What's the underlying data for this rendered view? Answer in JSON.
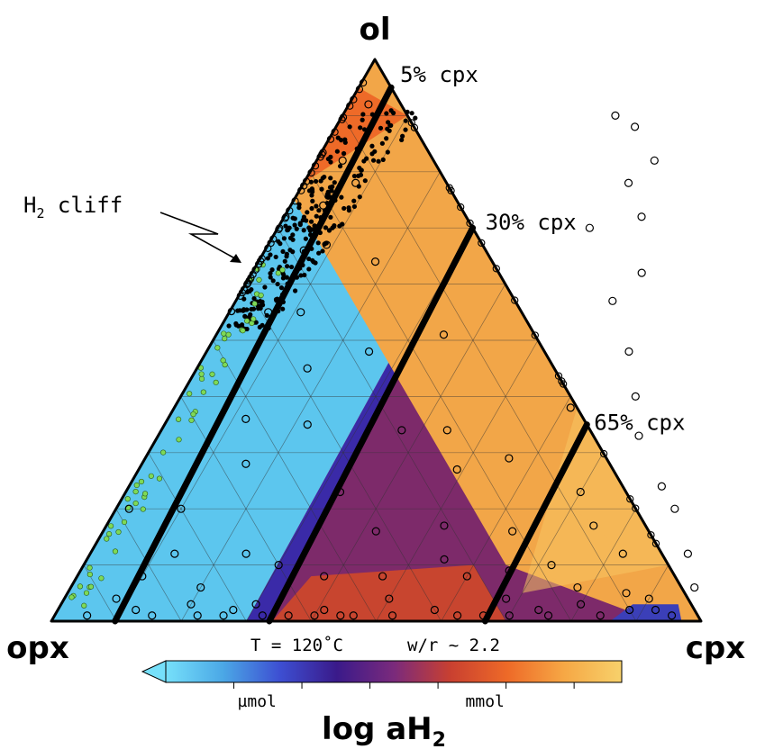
{
  "chart_data": {
    "type": "ternary",
    "vertices": {
      "top": "ol",
      "left": "opx",
      "right": "cpx"
    },
    "grid_step": 0.1,
    "conditions": {
      "temperature": "T = 120˚C",
      "water_rock": "w/r ~ 2.2"
    },
    "annotation": {
      "text_main": "H",
      "text_sub": "2",
      "text_tail": " cliff"
    },
    "regions": [
      {
        "name": "umol",
        "color": "#5cc6ee",
        "polygon": [
          [
            0,
            0.75,
            0.25
          ],
          [
            0.29,
            0.46,
            0.25
          ],
          [
            0.3,
            0,
            0.7
          ],
          [
            0,
            0,
            1.0
          ]
        ]
      },
      {
        "name": "transition",
        "color": "#3a2aa8",
        "polygon": [
          [
            0.29,
            0.46,
            0.25
          ],
          [
            0.31,
            0.44,
            0.25
          ],
          [
            0.34,
            0,
            0.66
          ],
          [
            0.3,
            0,
            0.7
          ]
        ]
      },
      {
        "name": "mmol-mid",
        "color": "#7d2a6a",
        "polygon": [
          [
            0.31,
            0.44,
            0.25
          ],
          [
            0.65,
            0.1,
            0.25
          ],
          [
            0.93,
            0,
            0.07
          ],
          [
            0.34,
            0,
            0.66
          ]
        ]
      },
      {
        "name": "mmol-low",
        "color": "#c8452f",
        "polygon": [
          [
            0.34,
            0,
            0.66
          ],
          [
            0.7,
            0,
            0.3
          ],
          [
            0.6,
            0.1,
            0.3
          ],
          [
            0.36,
            0.08,
            0.56
          ]
        ]
      },
      {
        "name": "mmol-high-orange",
        "color": "#f2a648",
        "polygon": [
          [
            0,
            0.75,
            0.25
          ],
          [
            0.65,
            0.1,
            0.25
          ],
          [
            1.0,
            0,
            0
          ],
          [
            0,
            0,
            0
          ],
          [
            0,
            0.35,
            0.65
          ]
        ]
      },
      {
        "name": "mmol-top",
        "color": "#ee6a28",
        "polygon": [
          [
            0,
            0.78,
            0.22
          ],
          [
            0,
            0.95,
            0.05
          ],
          [
            0.1,
            0.9,
            0
          ]
        ]
      }
    ],
    "cpx_lines": [
      {
        "label": "5% cpx",
        "cpx_fraction": 0.05
      },
      {
        "label": "30% cpx",
        "cpx_fraction": 0.3
      },
      {
        "label": "65% cpx",
        "cpx_fraction": 0.65
      }
    ],
    "open_points": [
      [
        0.02,
        0.2
      ],
      [
        0.03,
        0.92
      ],
      [
        0.04,
        0.82
      ],
      [
        0.05,
        0.74
      ],
      [
        0.06,
        0.66
      ],
      [
        0.06,
        0.55
      ],
      [
        0.08,
        0.78
      ],
      [
        0.09,
        0.67
      ],
      [
        0.1,
        0.08
      ],
      [
        0.1,
        0.2
      ],
      [
        0.11,
        0.55
      ],
      [
        0.12,
        0.36
      ],
      [
        0.13,
        0.12
      ],
      [
        0.15,
        0.01
      ],
      [
        0.16,
        0.28
      ],
      [
        0.17,
        0.45
      ],
      [
        0.18,
        0.64
      ],
      [
        0.2,
        0.06
      ],
      [
        0.2,
        0.03
      ],
      [
        0.22,
        0.35
      ],
      [
        0.24,
        0.12
      ],
      [
        0.25,
        0.48
      ],
      [
        0.27,
        0.02
      ],
      [
        0.3,
        0.1
      ],
      [
        0.3,
        0.03
      ],
      [
        0.33,
        0.23
      ],
      [
        0.35,
        0.51
      ],
      [
        0.37,
        0.34
      ],
      [
        0.38,
        0.08
      ],
      [
        0.41,
        0.02
      ],
      [
        0.42,
        0.16
      ],
      [
        0.44,
        0.34
      ],
      [
        0.47,
        0.08
      ],
      [
        0.49,
        0.27
      ],
      [
        0.5,
        0.04
      ],
      [
        0.52,
        0.17
      ],
      [
        0.55,
        0.11
      ],
      [
        0.56,
        0.29
      ],
      [
        0.58,
        0.02
      ],
      [
        0.6,
        0.08
      ],
      [
        0.61,
        0.38
      ],
      [
        0.63,
        0.16
      ],
      [
        0.66,
        0.09
      ],
      [
        0.68,
        0.04
      ],
      [
        0.7,
        0.23
      ],
      [
        0.72,
        0.1
      ],
      [
        0.74,
        0.02
      ],
      [
        0.75,
        0.17
      ],
      [
        0.78,
        0.06
      ],
      [
        0.8,
        0.03
      ],
      [
        0.82,
        0.12
      ],
      [
        0.86,
        0.05
      ],
      [
        0.88,
        0.02
      ],
      [
        0.9,
        0.04
      ],
      [
        0.92,
        0.02
      ],
      [
        0.95,
        0.01
      ],
      [
        0.6,
        0.62
      ],
      [
        0.55,
        0.72
      ],
      [
        0.5,
        0.78
      ],
      [
        0.46,
        0.88
      ],
      [
        0.52,
        0.82
      ],
      [
        0.42,
        0.9
      ],
      [
        0.48,
        0.7
      ],
      [
        0.58,
        0.57
      ],
      [
        0.65,
        0.48
      ],
      [
        0.7,
        0.4
      ],
      [
        0.74,
        0.33
      ],
      [
        0.82,
        0.24
      ],
      [
        0.86,
        0.2
      ],
      [
        0.92,
        0.12
      ],
      [
        0.96,
        0.06
      ],
      [
        0.12,
        0.02
      ],
      [
        0.05,
        0.01
      ],
      [
        0.08,
        0.04
      ],
      [
        0.22,
        0.01
      ],
      [
        0.26,
        0.01
      ],
      [
        0.32,
        0.01
      ],
      [
        0.36,
        0.01
      ],
      [
        0.4,
        0.01
      ],
      [
        0.44,
        0.01
      ],
      [
        0.46,
        0.01
      ],
      [
        0.52,
        0.01
      ],
      [
        0.62,
        0.01
      ],
      [
        0.66,
        0.01
      ],
      [
        0.7,
        0.01
      ],
      [
        0.76,
        0.01
      ],
      [
        0.84,
        0.01
      ]
    ],
    "colorbar": {
      "label_main": "log aH",
      "label_sub": "2",
      "tick_labels": [
        {
          "text": "µmol",
          "position": 0.2
        },
        {
          "text": "mmol",
          "position": 0.7
        }
      ],
      "stops": [
        "#76e0fa",
        "#4ba8e6",
        "#3d4fd2",
        "#3a1a8a",
        "#7a2a7c",
        "#c94030",
        "#ee6a28",
        "#f6a845",
        "#f7d16b"
      ],
      "extend": "min"
    }
  }
}
